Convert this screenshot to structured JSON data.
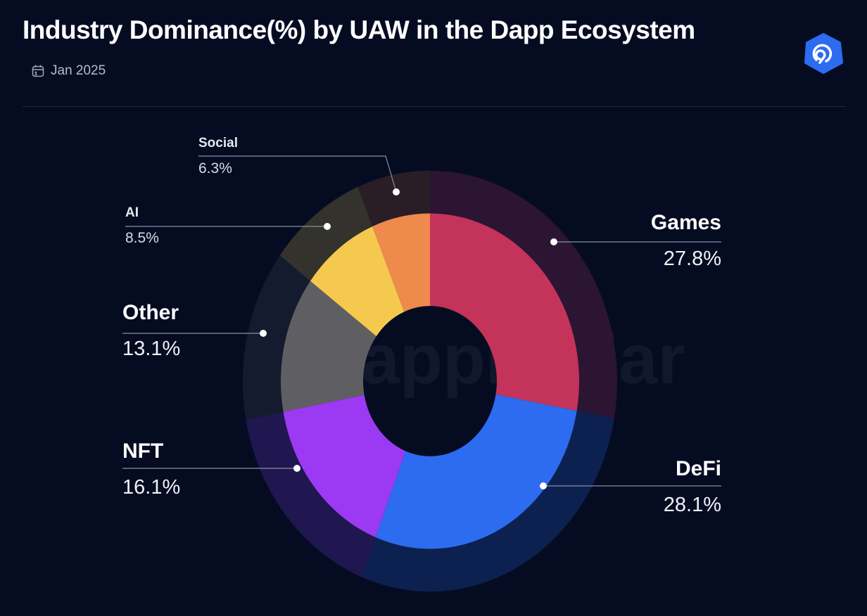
{
  "header": {
    "title": "Industry Dominance(%) by UAW in the Dapp Ecosystem",
    "date": "Jan 2025",
    "date_icon": "calendar-icon",
    "logo": "DappRadar"
  },
  "watermark": "DappRadar",
  "chart_data": {
    "type": "pie",
    "variant": "donut",
    "title": "Industry Dominance(%) by UAW in the Dapp Ecosystem",
    "unit": "%",
    "start": "top",
    "direction": "clockwise",
    "categories": [
      "Games",
      "DeFi",
      "NFT",
      "Other",
      "AI",
      "Social"
    ],
    "values": [
      27.8,
      28.1,
      16.1,
      13.1,
      8.5,
      6.3
    ],
    "labels": [
      "27.8%",
      "28.1%",
      "16.1%",
      "13.1%",
      "8.5%",
      "6.3%"
    ],
    "colors": [
      "#C4335A",
      "#2D6BF0",
      "#9B3AF2",
      "#5F5F63",
      "#F5C94E",
      "#EE8B4C"
    ],
    "ring_colors": [
      "#2C1433",
      "#0C2150",
      "#201650",
      "#141B2E",
      "#33322C",
      "#2A1E26"
    ]
  }
}
